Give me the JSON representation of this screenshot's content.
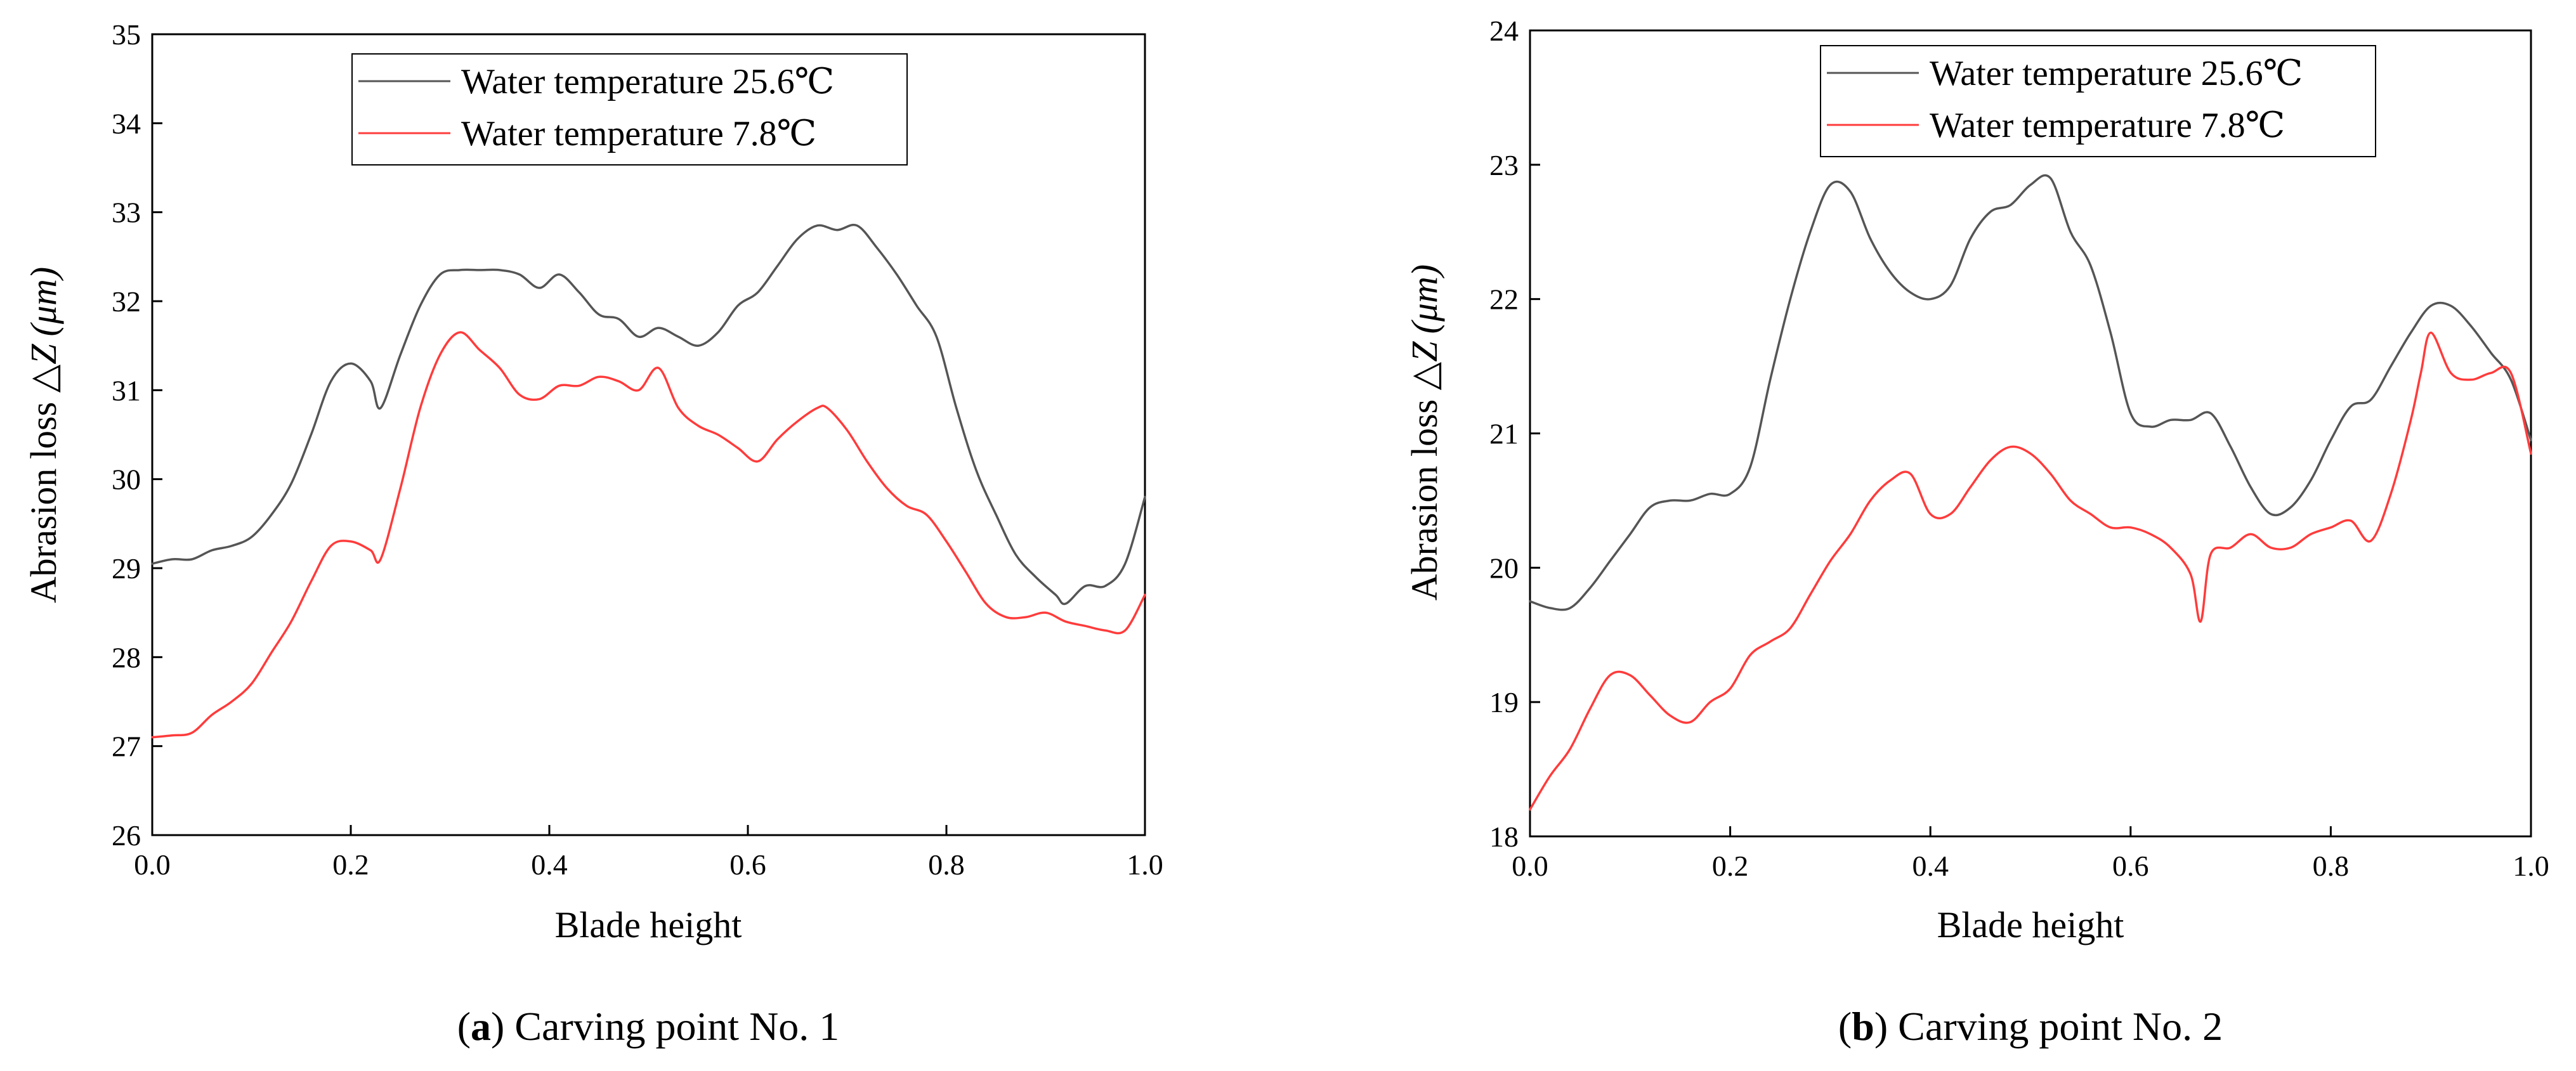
{
  "chart_data": [
    {
      "type": "line",
      "panel": "a",
      "caption_letter": "a",
      "caption_text": " Carving point No. 1",
      "xlabel": "Blade height",
      "ylabel_prefix": "Abrasion loss ",
      "ylabel_symbol": "△Z",
      "ylabel_unit": "(μm)",
      "xlim": [
        0.0,
        1.0
      ],
      "ylim": [
        26,
        35
      ],
      "xticks": [
        "0.0",
        "0.2",
        "0.4",
        "0.6",
        "0.8",
        "1.0"
      ],
      "yticks": [
        "26",
        "27",
        "28",
        "29",
        "30",
        "31",
        "32",
        "33",
        "34",
        "35"
      ],
      "legend_position": "top-center",
      "series": [
        {
          "name": "Water temperature 25.6℃",
          "color": "#555555",
          "x": [
            0.0,
            0.02,
            0.04,
            0.06,
            0.08,
            0.1,
            0.12,
            0.14,
            0.16,
            0.18,
            0.2,
            0.22,
            0.23,
            0.25,
            0.27,
            0.29,
            0.31,
            0.33,
            0.35,
            0.37,
            0.39,
            0.41,
            0.43,
            0.45,
            0.47,
            0.49,
            0.51,
            0.53,
            0.55,
            0.57,
            0.59,
            0.61,
            0.63,
            0.65,
            0.67,
            0.69,
            0.71,
            0.73,
            0.75,
            0.77,
            0.79,
            0.81,
            0.83,
            0.85,
            0.87,
            0.89,
            0.91,
            0.92,
            0.94,
            0.96,
            0.98,
            1.0
          ],
          "y": [
            29.05,
            29.1,
            29.1,
            29.2,
            29.25,
            29.35,
            29.6,
            29.95,
            30.5,
            31.1,
            31.3,
            31.1,
            30.8,
            31.4,
            31.95,
            32.3,
            32.35,
            32.35,
            32.35,
            32.3,
            32.15,
            32.3,
            32.1,
            31.85,
            31.8,
            31.6,
            31.7,
            31.6,
            31.5,
            31.65,
            31.95,
            32.1,
            32.4,
            32.7,
            32.85,
            32.8,
            32.85,
            32.6,
            32.3,
            31.95,
            31.6,
            30.8,
            30.1,
            29.6,
            29.15,
            28.9,
            28.7,
            28.6,
            28.8,
            28.8,
            29.05,
            29.8
          ]
        },
        {
          "name": "Water temperature 7.8℃",
          "color": "#ff3b3b",
          "x": [
            0.0,
            0.02,
            0.04,
            0.06,
            0.08,
            0.1,
            0.12,
            0.14,
            0.16,
            0.18,
            0.2,
            0.22,
            0.23,
            0.25,
            0.27,
            0.29,
            0.31,
            0.33,
            0.35,
            0.37,
            0.39,
            0.41,
            0.43,
            0.45,
            0.47,
            0.49,
            0.51,
            0.53,
            0.55,
            0.57,
            0.59,
            0.61,
            0.63,
            0.65,
            0.67,
            0.68,
            0.7,
            0.72,
            0.74,
            0.76,
            0.78,
            0.8,
            0.82,
            0.84,
            0.86,
            0.88,
            0.9,
            0.92,
            0.94,
            0.96,
            0.98,
            1.0
          ],
          "y": [
            27.1,
            27.12,
            27.15,
            27.35,
            27.5,
            27.7,
            28.05,
            28.4,
            28.85,
            29.25,
            29.3,
            29.2,
            29.1,
            29.9,
            30.8,
            31.4,
            31.65,
            31.45,
            31.25,
            30.95,
            30.9,
            31.05,
            31.05,
            31.15,
            31.1,
            31.0,
            31.25,
            30.8,
            30.6,
            30.5,
            30.35,
            30.2,
            30.45,
            30.65,
            30.8,
            30.8,
            30.55,
            30.2,
            29.9,
            29.7,
            29.6,
            29.3,
            28.95,
            28.6,
            28.45,
            28.45,
            28.5,
            28.4,
            28.35,
            28.3,
            28.3,
            28.7
          ]
        }
      ]
    },
    {
      "type": "line",
      "panel": "b",
      "caption_letter": "b",
      "caption_text": " Carving point No. 2",
      "xlabel": "Blade height",
      "ylabel_prefix": "Abrasion loss ",
      "ylabel_symbol": "△Z",
      "ylabel_unit": "(μm)",
      "xlim": [
        0.0,
        1.0
      ],
      "ylim": [
        18,
        24
      ],
      "xticks": [
        "0.0",
        "0.2",
        "0.4",
        "0.6",
        "0.8",
        "1.0"
      ],
      "yticks": [
        "18",
        "19",
        "20",
        "21",
        "22",
        "23",
        "24"
      ],
      "legend_position": "top-center",
      "series": [
        {
          "name": "Water temperature 25.6℃",
          "color": "#555555",
          "x": [
            0.0,
            0.02,
            0.04,
            0.06,
            0.08,
            0.1,
            0.12,
            0.14,
            0.16,
            0.18,
            0.2,
            0.22,
            0.24,
            0.26,
            0.28,
            0.3,
            0.32,
            0.34,
            0.36,
            0.38,
            0.4,
            0.42,
            0.44,
            0.46,
            0.48,
            0.5,
            0.52,
            0.54,
            0.56,
            0.58,
            0.6,
            0.62,
            0.64,
            0.66,
            0.68,
            0.7,
            0.72,
            0.74,
            0.76,
            0.78,
            0.8,
            0.82,
            0.84,
            0.86,
            0.88,
            0.9,
            0.92,
            0.94,
            0.96,
            0.98,
            1.0
          ],
          "y": [
            19.75,
            19.7,
            19.7,
            19.85,
            20.05,
            20.25,
            20.45,
            20.5,
            20.5,
            20.55,
            20.55,
            20.75,
            21.4,
            22.0,
            22.5,
            22.85,
            22.8,
            22.45,
            22.2,
            22.05,
            22.0,
            22.1,
            22.45,
            22.65,
            22.7,
            22.85,
            22.9,
            22.5,
            22.25,
            21.75,
            21.15,
            21.05,
            21.1,
            21.1,
            21.15,
            20.9,
            20.6,
            20.4,
            20.45,
            20.65,
            20.95,
            21.2,
            21.25,
            21.5,
            21.75,
            21.95,
            21.95,
            21.8,
            21.6,
            21.4,
            20.95
          ]
        },
        {
          "name": "Water temperature 7.8℃",
          "color": "#ff3b3b",
          "x": [
            0.0,
            0.02,
            0.04,
            0.06,
            0.08,
            0.1,
            0.12,
            0.14,
            0.16,
            0.18,
            0.2,
            0.22,
            0.24,
            0.26,
            0.28,
            0.3,
            0.32,
            0.34,
            0.36,
            0.38,
            0.4,
            0.42,
            0.44,
            0.46,
            0.48,
            0.5,
            0.52,
            0.54,
            0.56,
            0.58,
            0.6,
            0.62,
            0.64,
            0.66,
            0.67,
            0.68,
            0.7,
            0.72,
            0.74,
            0.76,
            0.78,
            0.8,
            0.82,
            0.84,
            0.86,
            0.88,
            0.89,
            0.9,
            0.92,
            0.94,
            0.96,
            0.98,
            1.0
          ],
          "y": [
            18.2,
            18.45,
            18.65,
            18.95,
            19.2,
            19.2,
            19.05,
            18.9,
            18.85,
            19.0,
            19.1,
            19.35,
            19.45,
            19.55,
            19.8,
            20.05,
            20.25,
            20.5,
            20.65,
            20.7,
            20.4,
            20.4,
            20.6,
            20.8,
            20.9,
            20.85,
            20.7,
            20.5,
            20.4,
            20.3,
            20.3,
            20.25,
            20.15,
            19.95,
            19.6,
            20.1,
            20.15,
            20.25,
            20.15,
            20.15,
            20.25,
            20.3,
            20.35,
            20.2,
            20.55,
            21.1,
            21.45,
            21.75,
            21.45,
            21.4,
            21.45,
            21.45,
            20.85
          ]
        }
      ]
    }
  ]
}
